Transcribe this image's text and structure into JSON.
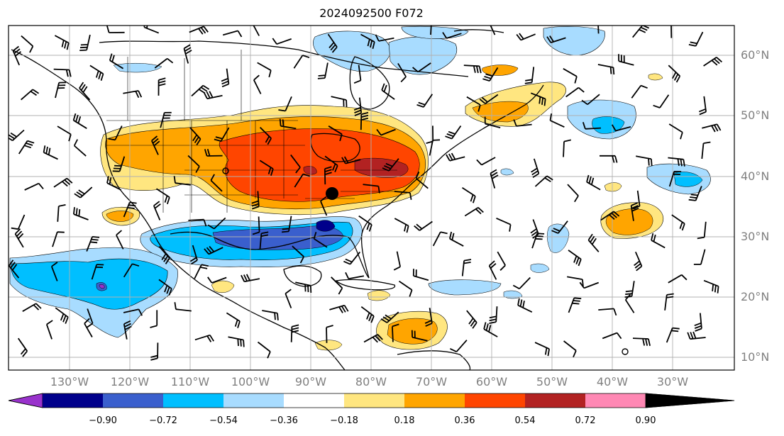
{
  "title": "2024092500 F072",
  "lat_labels": [
    "60°N",
    "50°N",
    "40°N",
    "30°N",
    "20°N",
    "10°N"
  ],
  "lon_labels": [
    "130°W",
    "120°W",
    "110°W",
    "100°W",
    "90°W",
    "80°W",
    "70°W",
    "60°W",
    "50°W",
    "40°W",
    "30°W"
  ],
  "colorbar": {
    "ticks": [
      "−0.90",
      "−0.72",
      "−0.54",
      "−0.36",
      "−0.18",
      "0.18",
      "0.36",
      "0.54",
      "0.72",
      "0.90"
    ],
    "colors": [
      "#9932cc",
      "#00008b",
      "#3a5fcd",
      "#00bfff",
      "#a8dcff",
      "#ffffff",
      "#ffe680",
      "#ffa500",
      "#ff4500",
      "#b22222",
      "#ff88b4"
    ]
  },
  "fills": {
    "neg_light": "#a8dcff",
    "neg_mid": "#00bfff",
    "neg_strong": "#3a5fcd",
    "neg_dark": "#00008b",
    "neg_extreme": "#9932cc",
    "pos_light": "#ffe680",
    "pos_mid": "#ffa500",
    "pos_strong": "#ff4500",
    "pos_dark": "#b22222"
  }
}
